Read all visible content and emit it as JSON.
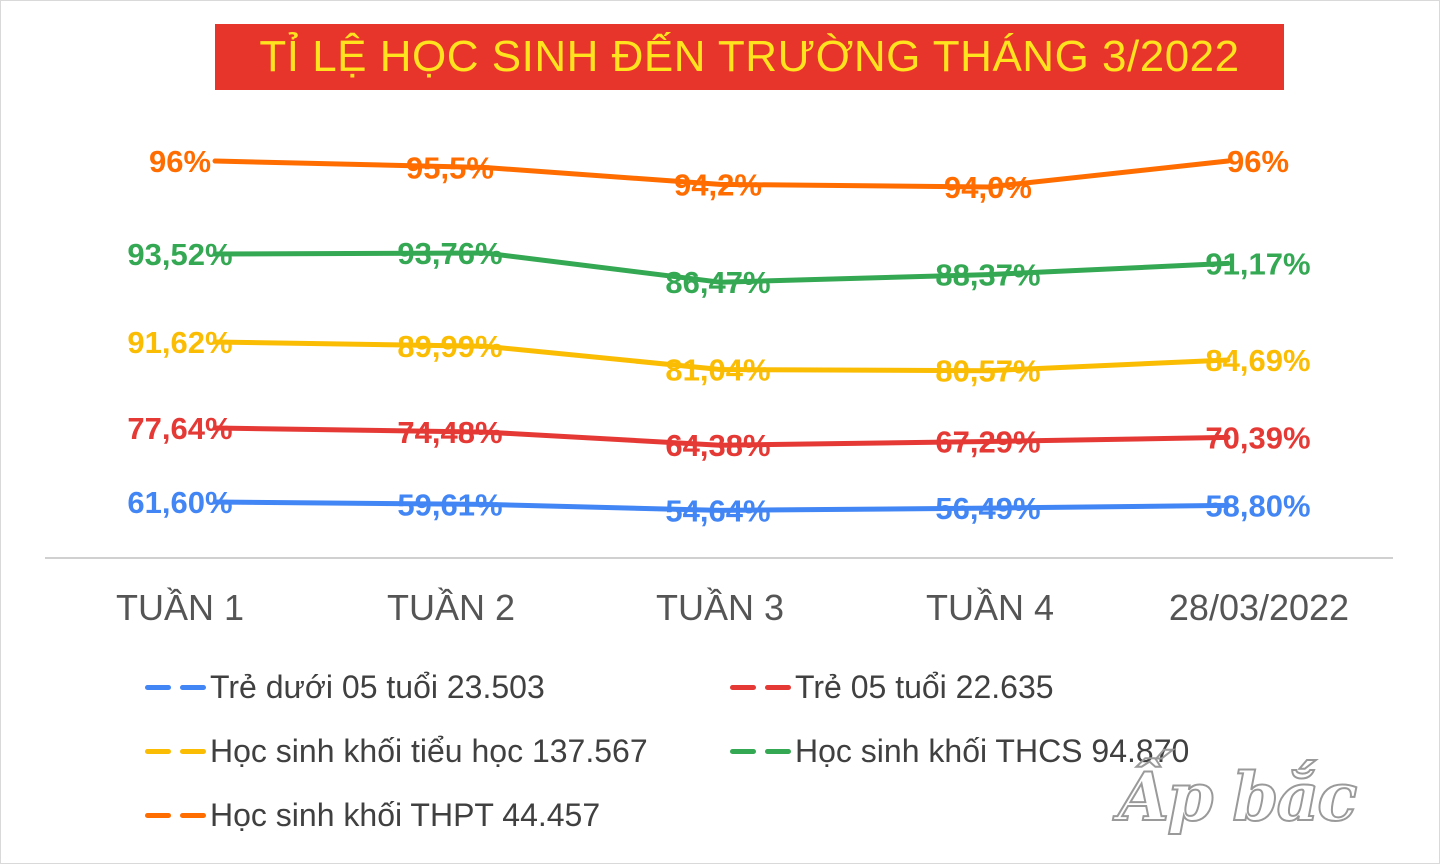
{
  "chart_data": {
    "type": "line",
    "title": "TỈ LỆ HỌC SINH ĐẾN TRƯỜNG THÁNG 3/2022",
    "categories": [
      "TUẦN 1",
      "TUẦN 2",
      "TUẦN 3",
      "TUẦN 4",
      "28/03/2022"
    ],
    "xlabel": "",
    "ylabel": "",
    "grid": false,
    "legend_position": "bottom",
    "series": [
      {
        "name": "Trẻ dưới 05 tuổi 23.503",
        "color": "#4285f4",
        "values": [
          61.6,
          59.61,
          54.64,
          56.49,
          58.8
        ],
        "labels": [
          "61,60%",
          "59,61%",
          "54,64%",
          "56,49%",
          "58,80%"
        ]
      },
      {
        "name": "Trẻ 05 tuổi 22.635",
        "color": "#e53935",
        "values": [
          77.64,
          74.48,
          64.38,
          67.29,
          70.39
        ],
        "labels": [
          "77,64%",
          "74,48%",
          "64,38%",
          "67,29%",
          "70,39%"
        ]
      },
      {
        "name": "Học sinh khối tiểu học 137.567",
        "color": "#fbbc04",
        "values": [
          91.62,
          89.99,
          81.04,
          80.57,
          84.69
        ],
        "labels": [
          "91,62%",
          "89,99%",
          "81,04%",
          "80,57%",
          "84,69%"
        ]
      },
      {
        "name": "Học sinh khối THCS 94.870",
        "color": "#34a853",
        "values": [
          93.52,
          93.76,
          86.47,
          88.37,
          91.17
        ],
        "labels": [
          "93,52%",
          "93,76%",
          "86,47%",
          "88,37%",
          "91,17%"
        ]
      },
      {
        "name": "Học sinh khối THPT 44.457",
        "color": "#ff6d01",
        "values": [
          96,
          95.5,
          94.2,
          94.0,
          96
        ],
        "labels": [
          "96%",
          "95,5%",
          "94,2%",
          "94,0%",
          "96%"
        ]
      }
    ]
  },
  "watermark": "Ấp bắc"
}
